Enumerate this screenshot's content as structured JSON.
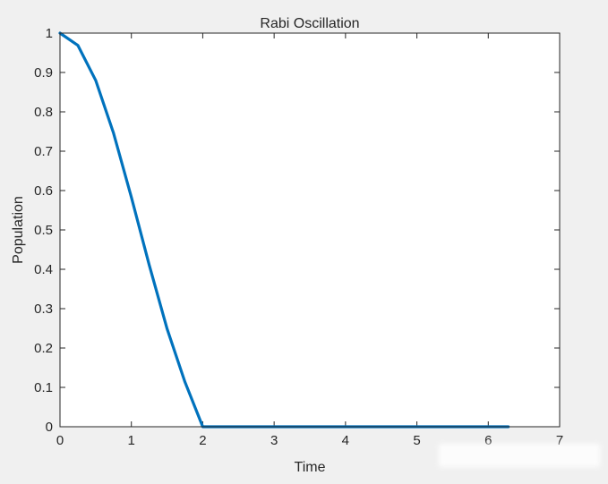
{
  "chart_data": {
    "type": "line",
    "title": "Rabi Oscillation",
    "xlabel": "Time",
    "ylabel": "Population",
    "xlim": [
      0,
      7
    ],
    "ylim": [
      0,
      1
    ],
    "xticks": [
      "0",
      "1",
      "2",
      "3",
      "4",
      "5",
      "6",
      "7"
    ],
    "yticks": [
      "0",
      "0.1",
      "0.2",
      "0.3",
      "0.4",
      "0.5",
      "0.6",
      "0.7",
      "0.8",
      "0.9",
      "1"
    ],
    "grid": false,
    "series": [
      {
        "color": "#0072bd",
        "x": [
          0,
          0.25,
          0.5,
          0.75,
          1.0,
          1.25,
          1.5,
          1.75,
          2.0,
          2.25,
          2.5,
          2.75,
          3.0,
          3.14,
          3.25,
          3.5,
          3.75,
          4.0,
          4.25,
          4.5,
          4.75,
          5.0,
          5.25,
          5.5,
          5.75,
          6.0,
          6.28
        ],
        "y": [
          1.0,
          0.969,
          0.88,
          0.746,
          0.583,
          0.411,
          0.249,
          0.114,
          0.0,
          0.0,
          0.0,
          0.0,
          0.0,
          0.0,
          0.0,
          0.0,
          0.0,
          0.0,
          0.0,
          0.0,
          0.0,
          0.0,
          0.0,
          0.0,
          0.0,
          0.0,
          0.0
        ]
      }
    ]
  }
}
